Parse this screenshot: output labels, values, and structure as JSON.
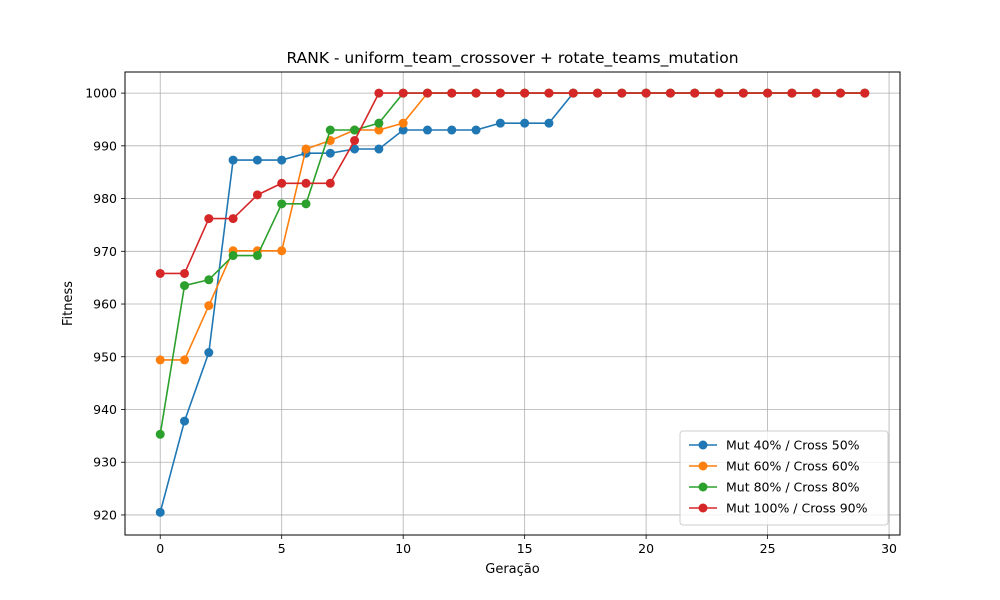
{
  "chart_data": {
    "type": "line",
    "title": "RANK - uniform_team_crossover + rotate_teams_mutation",
    "xlabel": "Geração",
    "ylabel": "Fitness",
    "xlim": [
      -1.45,
      30.45
    ],
    "ylim": [
      916.2,
      1004
    ],
    "xticks": [
      0,
      5,
      10,
      15,
      20,
      25,
      30
    ],
    "yticks": [
      920,
      930,
      940,
      950,
      960,
      970,
      980,
      990,
      1000
    ],
    "grid": true,
    "legend_position": "lower right",
    "x": [
      0,
      1,
      2,
      3,
      4,
      5,
      6,
      7,
      8,
      9,
      10,
      11,
      12,
      13,
      14,
      15,
      16,
      17,
      18,
      19,
      20,
      21,
      22,
      23,
      24,
      25,
      26,
      27,
      28,
      29
    ],
    "series": [
      {
        "name": "Mut 40% / Cross 50%",
        "color": "#1f77b4",
        "values": [
          920.5,
          937.8,
          950.8,
          987.3,
          987.3,
          987.3,
          988.6,
          988.6,
          989.4,
          989.4,
          993.0,
          993.0,
          993.0,
          993.0,
          994.3,
          994.3,
          994.3,
          1000,
          1000,
          1000,
          1000,
          1000,
          1000,
          1000,
          1000,
          1000,
          1000,
          1000,
          1000,
          1000
        ]
      },
      {
        "name": "Mut 60% / Cross 60%",
        "color": "#ff7f0e",
        "values": [
          949.4,
          949.4,
          959.7,
          970.1,
          970.1,
          970.1,
          989.4,
          991.0,
          993.0,
          993.0,
          994.3,
          1000,
          1000,
          1000,
          1000,
          1000,
          1000,
          1000,
          1000,
          1000,
          1000,
          1000,
          1000,
          1000,
          1000,
          1000,
          1000,
          1000,
          1000,
          1000
        ]
      },
      {
        "name": "Mut 80% / Cross 80%",
        "color": "#2ca02c",
        "values": [
          935.3,
          963.5,
          964.6,
          969.2,
          969.2,
          979.0,
          979.0,
          993.0,
          993.0,
          994.3,
          1000,
          1000,
          1000,
          1000,
          1000,
          1000,
          1000,
          1000,
          1000,
          1000,
          1000,
          1000,
          1000,
          1000,
          1000,
          1000,
          1000,
          1000,
          1000,
          1000
        ]
      },
      {
        "name": "Mut 100% / Cross 90%",
        "color": "#d62728",
        "values": [
          965.8,
          965.8,
          976.2,
          976.2,
          980.7,
          982.9,
          982.9,
          982.9,
          991.0,
          1000,
          1000,
          1000,
          1000,
          1000,
          1000,
          1000,
          1000,
          1000,
          1000,
          1000,
          1000,
          1000,
          1000,
          1000,
          1000,
          1000,
          1000,
          1000,
          1000,
          1000
        ]
      }
    ]
  }
}
